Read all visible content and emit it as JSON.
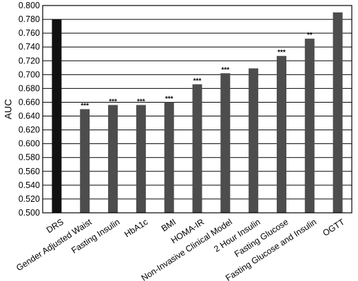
{
  "chart_data": {
    "type": "bar",
    "title": "",
    "xlabel": "",
    "ylabel": "AUC",
    "ylim": [
      0.5,
      0.8
    ],
    "yticks": [
      "0.500",
      "0.520",
      "0.540",
      "0.560",
      "0.580",
      "0.600",
      "0.620",
      "0.640",
      "0.660",
      "0.680",
      "0.700",
      "0.720",
      "0.740",
      "0.760",
      "0.780",
      "0.800"
    ],
    "grid": "horizontal",
    "categories": [
      "DRS",
      "Gender Adjusted Waist",
      "Fasting Insulin",
      "HbA1c",
      "BMI",
      "HOMA-IR",
      "Non-Invasive Clinical Model",
      "2 Hour Insulin",
      "Fasting Glucose",
      "Fasting Glucose and Insulin",
      "OGTT"
    ],
    "values": [
      0.78,
      0.65,
      0.656,
      0.656,
      0.66,
      0.686,
      0.702,
      0.709,
      0.727,
      0.752,
      0.79
    ],
    "significance": [
      "",
      "***",
      "***",
      "***",
      "***",
      "***",
      "***",
      "",
      "***",
      "**",
      ""
    ],
    "colors": [
      "#111111",
      "#4d4d4d",
      "#4d4d4d",
      "#4d4d4d",
      "#4d4d4d",
      "#4d4d4d",
      "#4d4d4d",
      "#4d4d4d",
      "#4d4d4d",
      "#4d4d4d",
      "#4d4d4d"
    ]
  }
}
